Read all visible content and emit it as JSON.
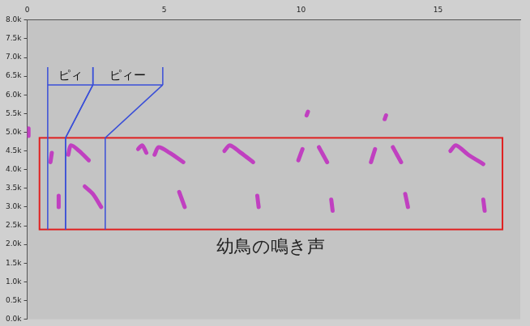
{
  "chart_data": {
    "type": "spectrogram",
    "xlim": [
      0,
      18
    ],
    "xticks": [
      0,
      5,
      10,
      15
    ],
    "ylim": [
      0,
      8
    ],
    "yticks": [
      {
        "value": 0,
        "label": "0.0k"
      },
      {
        "value": 0.5,
        "label": "0.5k"
      },
      {
        "value": 1,
        "label": "1.0k"
      },
      {
        "value": 1.5,
        "label": "1.5k"
      },
      {
        "value": 2,
        "label": "2.0k"
      },
      {
        "value": 2.5,
        "label": "2.5k"
      },
      {
        "value": 3,
        "label": "3.0k"
      },
      {
        "value": 3.5,
        "label": "3.5k"
      },
      {
        "value": 4,
        "label": "4.0k"
      },
      {
        "value": 4.5,
        "label": "4.5k"
      },
      {
        "value": 5,
        "label": "5.0k"
      },
      {
        "value": 5.5,
        "label": "5.5k"
      },
      {
        "value": 6,
        "label": "6.0k"
      },
      {
        "value": 6.5,
        "label": "6.5k"
      },
      {
        "value": 7,
        "label": "7.0k"
      },
      {
        "value": 7.5,
        "label": "7.5k"
      },
      {
        "value": 8,
        "label": "8.0k"
      }
    ],
    "grid": false,
    "color": "#c040c0",
    "line_style": "solid",
    "calls": [
      {
        "x": [
          0.05,
          0.05
        ],
        "y": [
          4.9,
          5.1
        ]
      },
      {
        "x": [
          0.85,
          0.9
        ],
        "y": [
          4.2,
          4.45
        ]
      },
      {
        "x": [
          1.5,
          1.6,
          1.9,
          2.25
        ],
        "y": [
          4.4,
          4.65,
          4.5,
          4.25
        ]
      },
      {
        "x": [
          4.05,
          4.2,
          4.35
        ],
        "y": [
          4.55,
          4.65,
          4.45
        ]
      },
      {
        "x": [
          4.65,
          4.8,
          5.2,
          5.7
        ],
        "y": [
          4.4,
          4.6,
          4.45,
          4.2
        ]
      },
      {
        "x": [
          7.2,
          7.4,
          7.8,
          8.25
        ],
        "y": [
          4.5,
          4.65,
          4.45,
          4.2
        ]
      },
      {
        "x": [
          9.9,
          10.05
        ],
        "y": [
          4.25,
          4.55
        ]
      },
      {
        "x": [
          10.65,
          10.8,
          10.95
        ],
        "y": [
          4.6,
          4.4,
          4.2
        ]
      },
      {
        "x": [
          12.55,
          12.7
        ],
        "y": [
          4.2,
          4.55
        ]
      },
      {
        "x": [
          13.35,
          13.5,
          13.65
        ],
        "y": [
          4.6,
          4.4,
          4.2
        ]
      },
      {
        "x": [
          15.45,
          15.65,
          16.1,
          16.65
        ],
        "y": [
          4.5,
          4.65,
          4.4,
          4.15
        ]
      },
      {
        "x": [
          10.2,
          10.25
        ],
        "y": [
          5.45,
          5.55
        ]
      },
      {
        "x": [
          13.05,
          13.1
        ],
        "y": [
          5.35,
          5.45
        ]
      },
      {
        "x": [
          1.15,
          1.15
        ],
        "y": [
          3.0,
          3.3
        ]
      },
      {
        "x": [
          2.1,
          2.4,
          2.7
        ],
        "y": [
          3.55,
          3.35,
          3.0
        ]
      },
      {
        "x": [
          5.55,
          5.75
        ],
        "y": [
          3.4,
          3.0
        ]
      },
      {
        "x": [
          8.4,
          8.45
        ],
        "y": [
          3.3,
          3.0
        ]
      },
      {
        "x": [
          11.1,
          11.15
        ],
        "y": [
          3.2,
          2.9
        ]
      },
      {
        "x": [
          13.8,
          13.9
        ],
        "y": [
          3.35,
          3.0
        ]
      },
      {
        "x": [
          16.65,
          16.7
        ],
        "y": [
          3.2,
          2.9
        ]
      }
    ],
    "highlight": {
      "label": "幼鳥の鳴き声",
      "xlim": [
        0.45,
        17.35
      ],
      "ylim": [
        2.4,
        4.85
      ]
    },
    "brackets": [
      {
        "label": "ピィ",
        "label_span": [
          0.75,
          2.4
        ],
        "call_span": [
          0.75,
          1.4
        ]
      },
      {
        "label": "ピィー",
        "label_span": [
          2.4,
          4.95
        ],
        "call_span": [
          1.4,
          2.85
        ]
      }
    ]
  }
}
